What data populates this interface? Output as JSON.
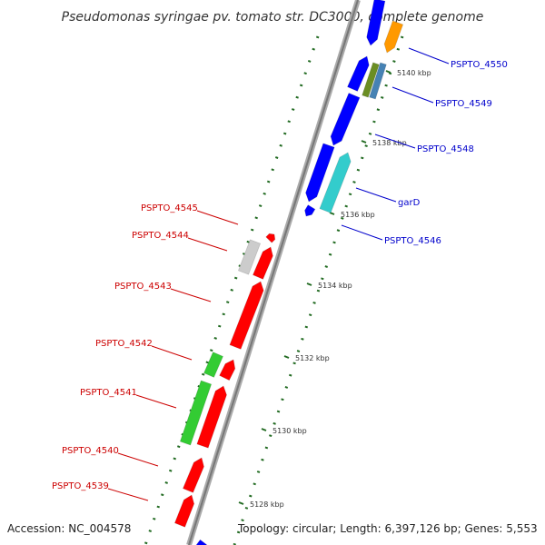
{
  "title": "Pseudomonas syringae pv. tomato str. DC3000, complete genome",
  "accession": "Accession: NC_004578",
  "topology": "Topology: circular; Length: 6,397,126 bp; Genes: 5,553",
  "colors": {
    "forward_gene": "#0000ff",
    "reverse_gene": "#ff0000",
    "forward_label": "#0000cc",
    "reverse_label": "#cc0000",
    "other_gene": "#ff9900",
    "cyan_gene": "#33cccc",
    "green_gene": "#33cc33",
    "olive_gene": "#6b8e23",
    "steelblue_gene": "#4682b4",
    "gray_gene": "#cccccc",
    "tick_color": "#226b22",
    "backbone": "#888888"
  },
  "ticks": [
    {
      "label": "5128 kbp"
    },
    {
      "label": "5130 kbp"
    },
    {
      "label": "5132 kbp"
    },
    {
      "label": "5134 kbp"
    },
    {
      "label": "5136 kbp"
    },
    {
      "label": "5138 kbp"
    },
    {
      "label": "5140 kbp"
    }
  ],
  "forward_labels": [
    {
      "text": "PSPTO_4550"
    },
    {
      "text": "PSPTO_4549"
    },
    {
      "text": "PSPTO_4548"
    },
    {
      "text": "garD"
    },
    {
      "text": "PSPTO_4546"
    }
  ],
  "reverse_labels": [
    {
      "text": "PSPTO_4545"
    },
    {
      "text": "PSPTO_4544"
    },
    {
      "text": "PSPTO_4543"
    },
    {
      "text": "PSPTO_4542"
    },
    {
      "text": "PSPTO_4541"
    },
    {
      "text": "PSPTO_4540"
    },
    {
      "text": "PSPTO_4539"
    }
  ]
}
